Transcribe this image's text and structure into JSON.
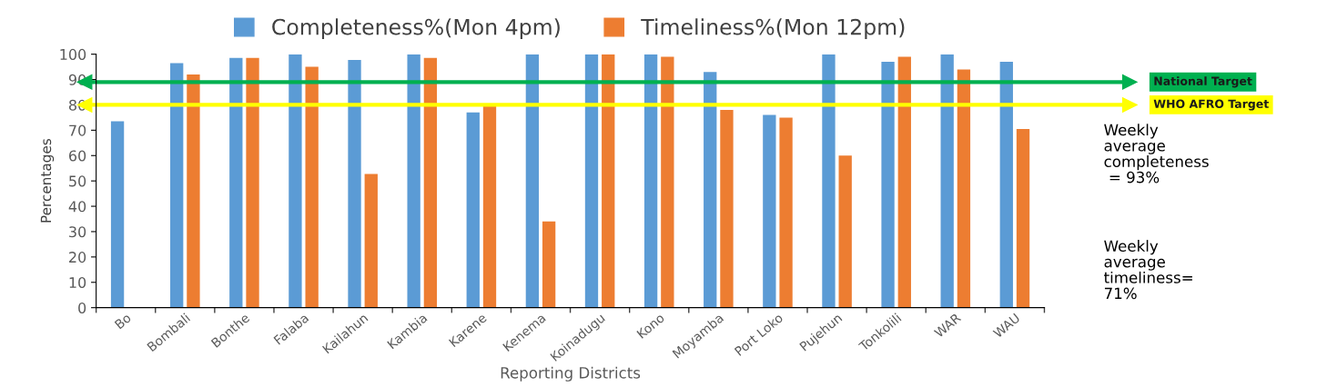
{
  "chart_data": {
    "type": "bar",
    "xlabel": "Reporting Districts",
    "ylabel": "Percentages",
    "categories": [
      "Bo",
      "Bombali",
      "Bonthe",
      "Falaba",
      "Kailahun",
      "Kambia",
      "Karene",
      "Kenema",
      "Koinadugu",
      "Kono",
      "Moyamba",
      "Port Loko",
      "Pujehun",
      "Tonkolili",
      "WAR",
      "WAU"
    ],
    "series": [
      {
        "name": "Completeness%(Mon 4pm)",
        "color": "#5b9bd5",
        "values": [
          73.5,
          96.5,
          98.5,
          100,
          97.7,
          100,
          77,
          100,
          100,
          100,
          93,
          76,
          100,
          97,
          100,
          97
        ]
      },
      {
        "name": "Timeliness%(Mon 12pm)",
        "color": "#ed7d31",
        "values": [
          null,
          92,
          98.5,
          95,
          52.7,
          98.5,
          80.5,
          34,
          100,
          99,
          78,
          75,
          60,
          99,
          94,
          70.5
        ]
      }
    ],
    "ylim": [
      0,
      100
    ],
    "yticks": [
      0,
      10,
      20,
      30,
      40,
      50,
      60,
      70,
      80,
      90,
      100
    ],
    "grid": false,
    "legend": "top",
    "ref_lines": [
      {
        "axis": "y",
        "value": 89,
        "label": "National Target",
        "color": "#00b050"
      },
      {
        "axis": "y",
        "value": 80,
        "label": "WHO AFRO Target",
        "color": "#ffff00"
      }
    ],
    "annotations": [
      "Weekly\naverage\ncompleteness\n = 93%",
      "Weekly\naverage\ntimeliness=\n71%"
    ]
  }
}
